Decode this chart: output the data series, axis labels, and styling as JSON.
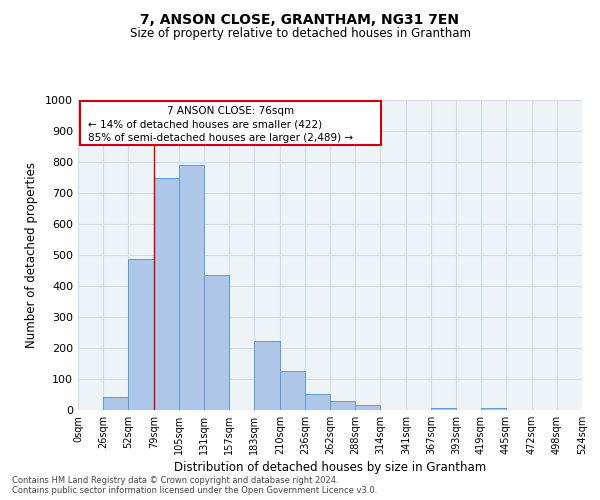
{
  "title": "7, ANSON CLOSE, GRANTHAM, NG31 7EN",
  "subtitle": "Size of property relative to detached houses in Grantham",
  "xlabel": "Distribution of detached houses by size in Grantham",
  "ylabel": "Number of detached properties",
  "footnote1": "Contains HM Land Registry data © Crown copyright and database right 2024.",
  "footnote2": "Contains public sector information licensed under the Open Government Licence v3.0.",
  "bar_left_edges": [
    0,
    26,
    52,
    79,
    105,
    131,
    157,
    183,
    210,
    236,
    262,
    288,
    314,
    341,
    367,
    393,
    419,
    445,
    472,
    498
  ],
  "bar_widths": [
    26,
    26,
    27,
    26,
    26,
    26,
    26,
    27,
    26,
    26,
    26,
    26,
    27,
    26,
    26,
    26,
    26,
    27,
    26,
    26
  ],
  "bar_heights": [
    0,
    43,
    487,
    748,
    791,
    435,
    0,
    222,
    127,
    51,
    30,
    17,
    0,
    0,
    8,
    0,
    8,
    0,
    0,
    0
  ],
  "bar_color": "#aec6e8",
  "bar_edge_color": "#5b9bd5",
  "xtick_labels": [
    "0sqm",
    "26sqm",
    "52sqm",
    "79sqm",
    "105sqm",
    "131sqm",
    "157sqm",
    "183sqm",
    "210sqm",
    "236sqm",
    "262sqm",
    "288sqm",
    "314sqm",
    "341sqm",
    "367sqm",
    "393sqm",
    "419sqm",
    "445sqm",
    "472sqm",
    "498sqm",
    "524sqm"
  ],
  "xtick_positions": [
    0,
    26,
    52,
    79,
    105,
    131,
    157,
    183,
    210,
    236,
    262,
    288,
    314,
    341,
    367,
    393,
    419,
    445,
    472,
    498,
    524
  ],
  "ylim": [
    0,
    1000
  ],
  "xlim": [
    0,
    524
  ],
  "ytick_positions": [
    0,
    100,
    200,
    300,
    400,
    500,
    600,
    700,
    800,
    900,
    1000
  ],
  "vline_x": 79,
  "vline_color": "#cc0000",
  "annotation_line1": "7 ANSON CLOSE: 76sqm",
  "annotation_line2": "← 14% of detached houses are smaller (422)",
  "annotation_line3": "85% of semi-detached houses are larger (2,489) →",
  "annotation_box_color": "#cc0000",
  "grid_color": "#d0dce8",
  "bg_color": "#eef3f8"
}
